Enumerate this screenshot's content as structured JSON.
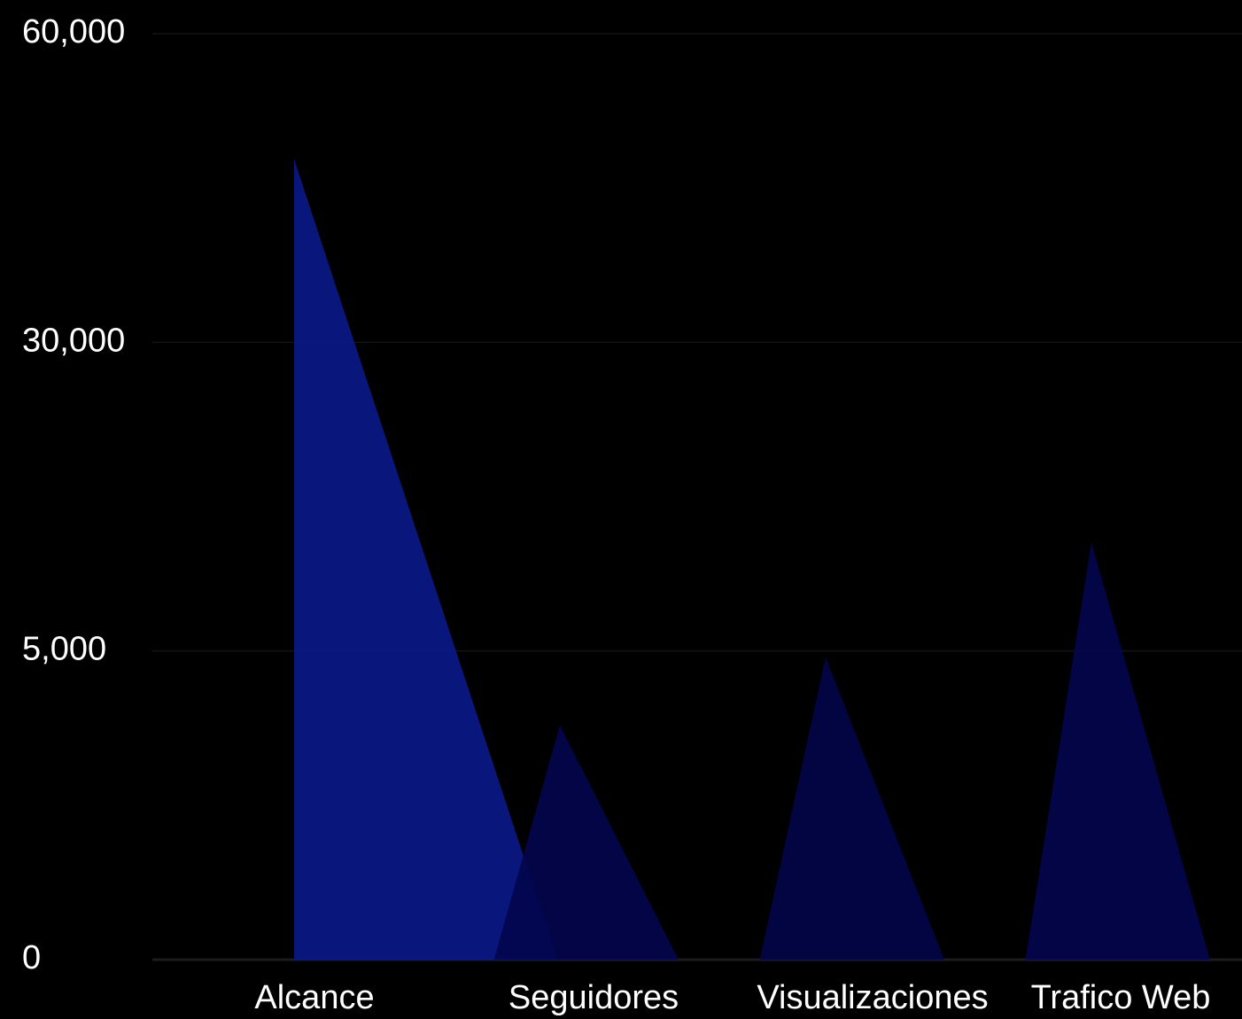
{
  "chart_data": {
    "type": "triangle",
    "categories": [
      "Alcance",
      "Seguidores",
      "Visualizaciones",
      "Trafico Web"
    ],
    "values": [
      47800,
      3800,
      4900,
      13800
    ],
    "colors": [
      "#0a1a8a",
      "#03064e",
      "#03064a",
      "#03064e"
    ],
    "ylim": [
      0,
      60000
    ],
    "yticks": [
      0,
      {
        "value": 5000,
        "label": "5,000"
      },
      {
        "value": 30000,
        "label": "30,000"
      },
      {
        "value": 60000,
        "label": "60,000"
      }
    ],
    "grid": true
  }
}
